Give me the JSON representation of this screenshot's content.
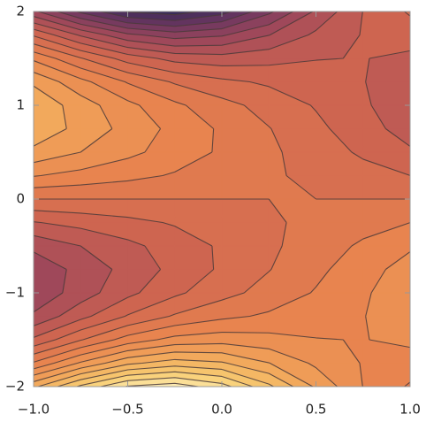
{
  "chart_data": {
    "type": "contour",
    "x": [
      -1,
      -0.75,
      -0.5,
      -0.25,
      0,
      0.25,
      0.5,
      0.75,
      1
    ],
    "y": [
      -2,
      -1.75,
      -1.5,
      -1.25,
      -1,
      -0.75,
      -0.5,
      -0.25,
      0,
      0.25,
      0.5,
      0.75,
      1,
      1.25,
      1.5,
      1.75,
      2
    ],
    "z": [
      [
        1.192,
        1.8,
        2.272,
        2.392,
        2.112,
        1.56,
        0.96,
        0.496,
        0.216
      ],
      [
        0.282,
        0.785,
        1.196,
        1.372,
        1.281,
        1.007,
        0.7,
        0.485,
        0.394
      ],
      [
        -0.451,
        -0.019,
        0.358,
        0.585,
        0.644,
        0.587,
        0.511,
        0.492,
        0.551
      ],
      [
        -0.956,
        -0.577,
        -0.23,
        0.03,
        0.193,
        0.289,
        0.373,
        0.491,
        0.654
      ],
      [
        -1.201,
        -0.875,
        -0.566,
        -0.301,
        -0.086,
        0.095,
        0.27,
        0.462,
        0.677
      ],
      [
        -1.184,
        -0.921,
        -0.665,
        -0.428,
        -0.212,
        -0.01,
        0.19,
        0.396,
        0.612
      ],
      [
        -0.935,
        -0.75,
        -0.565,
        -0.387,
        -0.214,
        -0.047,
        0.121,
        0.291,
        0.463
      ],
      [
        -0.515,
        -0.417,
        -0.322,
        -0.225,
        -0.13,
        -0.035,
        0.059,
        0.154,
        0.249
      ],
      [
        0,
        0,
        0,
        0,
        0,
        0,
        0,
        0,
        0
      ],
      [
        0.515,
        0.417,
        0.322,
        0.225,
        0.13,
        0.035,
        -0.059,
        -0.154,
        -0.249
      ],
      [
        0.935,
        0.75,
        0.565,
        0.387,
        0.214,
        0.047,
        -0.121,
        -0.291,
        -0.463
      ],
      [
        1.184,
        0.921,
        0.665,
        0.428,
        0.212,
        0.01,
        -0.19,
        -0.396,
        -0.612
      ],
      [
        1.201,
        0.875,
        0.566,
        0.301,
        0.086,
        -0.095,
        -0.27,
        -0.462,
        -0.677
      ],
      [
        0.956,
        0.577,
        0.23,
        -0.03,
        -0.193,
        -0.289,
        -0.373,
        -0.491,
        -0.654
      ],
      [
        0.451,
        0.019,
        -0.358,
        -0.585,
        -0.644,
        -0.587,
        -0.511,
        -0.492,
        -0.551
      ],
      [
        -0.282,
        -0.785,
        -1.196,
        -1.372,
        -1.281,
        -1.007,
        -0.7,
        -0.485,
        -0.394
      ],
      [
        -1.192,
        -1.8,
        -2.272,
        -2.392,
        -2.112,
        -1.56,
        -0.96,
        -0.496,
        -0.216
      ]
    ],
    "levels": [
      -2.25,
      -2,
      -1.75,
      -1.5,
      -1.25,
      -1,
      -0.75,
      -0.5,
      -0.25,
      0,
      0.25,
      0.5,
      0.75,
      1,
      1.25,
      1.5,
      1.75,
      2,
      2.25
    ],
    "colors": [
      "#2f2957",
      "#6a3560",
      "#a3495a",
      "#cf6650",
      "#e8834f",
      "#f1a65a",
      "#f8cd72",
      "#fff3c0"
    ],
    "line_color": "#4a3a3a",
    "xlim": [
      -1,
      1
    ],
    "ylim": [
      -2,
      2
    ],
    "xticks": [
      {
        "value": -1,
        "label": "−1.0"
      },
      {
        "value": -0.5,
        "label": "−0.5"
      },
      {
        "value": 0,
        "label": "0.0"
      },
      {
        "value": 0.5,
        "label": "0.5"
      },
      {
        "value": 1,
        "label": "1.0"
      }
    ],
    "yticks": [
      {
        "value": -2,
        "label": "−2"
      },
      {
        "value": -1,
        "label": "−1"
      },
      0,
      1,
      2
    ]
  }
}
